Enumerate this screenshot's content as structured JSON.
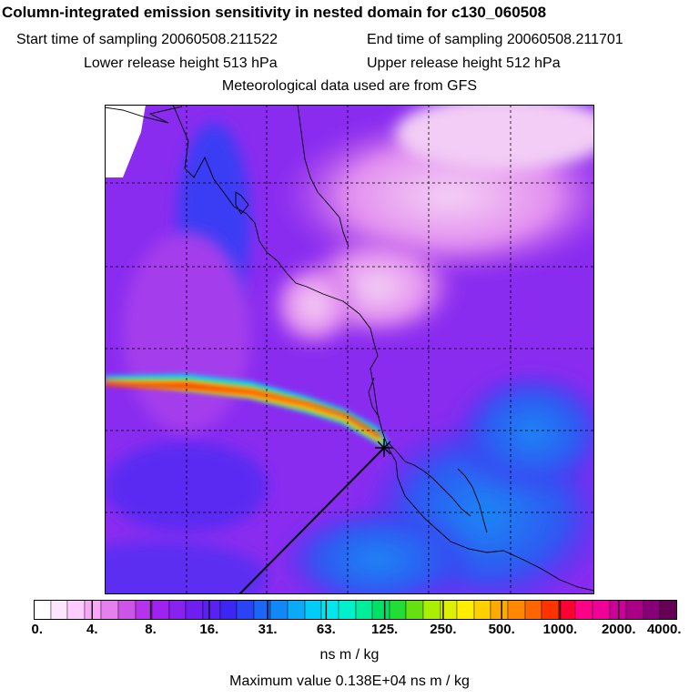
{
  "header": {
    "title": "Column-integrated emission sensitivity in nested domain for c130_060508",
    "start_time": "Start time of sampling 20060508.211522",
    "end_time": "End time of sampling 20060508.211701",
    "lower_height": "Lower release height  513 hPa",
    "upper_height": "Upper release height  512 hPa",
    "met_data": "Meteorological data used are from GFS"
  },
  "colorbar": {
    "tick_labels": [
      "0.",
      "4.",
      "8.",
      "16.",
      "31.",
      "63.",
      "125.",
      "250.",
      "500.",
      "1000.",
      "2000.",
      "4000."
    ],
    "colors": [
      "#ffffff",
      "#ffe6ff",
      "#ffccff",
      "#f7a8f7",
      "#e680ee",
      "#cc55e8",
      "#b633ee",
      "#9f22f0",
      "#8822ee",
      "#6f1ef0",
      "#5a22f2",
      "#3c26f4",
      "#2a44f5",
      "#1a66f7",
      "#1188f7",
      "#0aaaf7",
      "#00ccf5",
      "#00e8ee",
      "#00f0cc",
      "#00ee99",
      "#00e066",
      "#22dd33",
      "#66e011",
      "#aaee00",
      "#ddf000",
      "#ffee00",
      "#ffd000",
      "#ffaa00",
      "#ff8800",
      "#ff6600",
      "#ff3300",
      "#ff0033",
      "#ff0088",
      "#ee0099",
      "#cc0099",
      "#aa0088",
      "#880077",
      "#660055"
    ],
    "units": "ns m / kg",
    "max_value_text": "Maximum value  0.138E+04 ns m / kg"
  },
  "map": {
    "background_color": "#8a2cf0",
    "source_marker": "release-location"
  }
}
